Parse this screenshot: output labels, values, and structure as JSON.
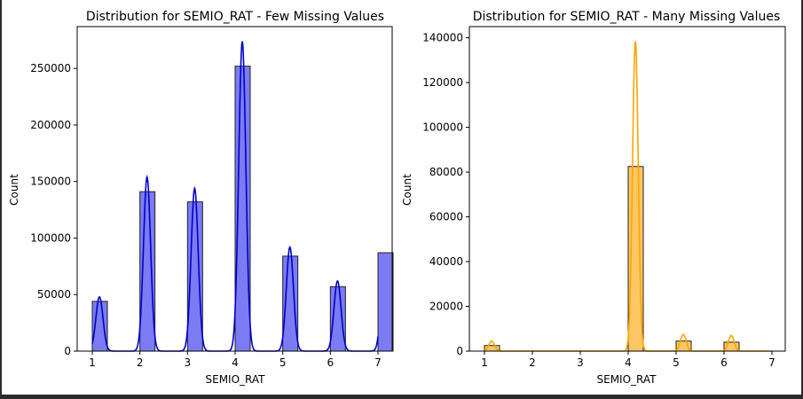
{
  "chart_data": [
    {
      "type": "bar",
      "title": "Distribution for SEMIO_RAT - Few Missing Values",
      "xlabel": "SEMIO_RAT",
      "ylabel": "Count",
      "xlim": [
        1,
        7
      ],
      "ylim": [
        0,
        287000
      ],
      "x_ticks": [
        "1",
        "2",
        "3",
        "4",
        "5",
        "6",
        "7"
      ],
      "y_ticks": [
        "0",
        "50000",
        "100000",
        "150000",
        "200000",
        "250000"
      ],
      "categories": [
        1,
        2,
        3,
        4,
        5,
        6,
        7
      ],
      "values": [
        44000,
        141000,
        132000,
        252000,
        84000,
        57000,
        87000
      ],
      "kde_peaks": [
        48000,
        154000,
        144000,
        274000,
        92000,
        62000,
        95000
      ],
      "bar_color": "#7b7bf3",
      "kde_color": "#0000cc",
      "grid": false
    },
    {
      "type": "bar",
      "title": "Distribution for SEMIO_RAT - Many Missing Values",
      "xlabel": "SEMIO_RAT",
      "ylabel": "Count",
      "xlim": [
        1,
        7
      ],
      "ylim": [
        0,
        145000
      ],
      "x_ticks": [
        "1",
        "2",
        "3",
        "4",
        "5",
        "6",
        "7"
      ],
      "y_ticks": [
        "0",
        "20000",
        "40000",
        "60000",
        "80000",
        "100000",
        "120000",
        "140000"
      ],
      "categories": [
        1,
        4,
        5,
        6
      ],
      "values": [
        2500,
        82500,
        4500,
        4000
      ],
      "kde_peaks": [
        4500,
        138500,
        7500,
        7000
      ],
      "bar_color": "#fdc764",
      "kde_color": "#ffa500",
      "grid": false
    }
  ]
}
